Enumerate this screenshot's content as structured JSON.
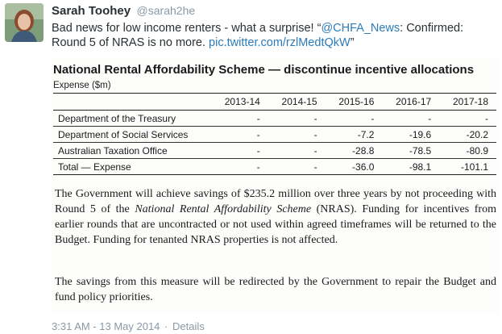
{
  "tweet": {
    "author_name": "Sarah Toohey",
    "author_handle": "@sarah2he",
    "text_before": "Bad news for low income renters - what a surprise! “",
    "mention": "@CHFA_News",
    "text_after": ": Confirmed: Round 5 of NRAS is no more. ",
    "link": "pic.twitter.com/rzlMedtQkW",
    "closing_quote": "”",
    "timestamp": "3:31 AM - 13 May 2014",
    "separator": "·",
    "details_label": "Details"
  },
  "document": {
    "title": "National Rental Affordability Scheme — discontinue incentive allocations",
    "expense_label": "Expense ($m)",
    "columns": [
      "2013-14",
      "2014-15",
      "2015-16",
      "2016-17",
      "2017-18"
    ],
    "rows": [
      {
        "label": "Department of the Treasury",
        "values": [
          "-",
          "-",
          "-",
          "-",
          "-"
        ]
      },
      {
        "label": "Department of Social Services",
        "values": [
          "-",
          "-",
          "-7.2",
          "-19.6",
          "-20.2"
        ]
      },
      {
        "label": "Australian Taxation Office",
        "values": [
          "-",
          "-",
          "-28.8",
          "-78.5",
          "-80.9"
        ]
      },
      {
        "label": "Total — Expense",
        "values": [
          "-",
          "-",
          "-36.0",
          "-98.1",
          "-101.1"
        ]
      }
    ],
    "para1_before": "The Government will achieve savings of $235.2 million over three years by not proceeding with Round 5 of the ",
    "para1_italic": "National Rental Affordability Scheme",
    "para1_after": " (NRAS). Funding for incentives from earlier rounds that are uncontracted or not used within agreed timeframes will be returned to the Budget. Funding for tenanted NRAS properties is not affected.",
    "para2": "The savings from this measure will be redirected by the Government to repair the Budget and fund policy priorities."
  }
}
